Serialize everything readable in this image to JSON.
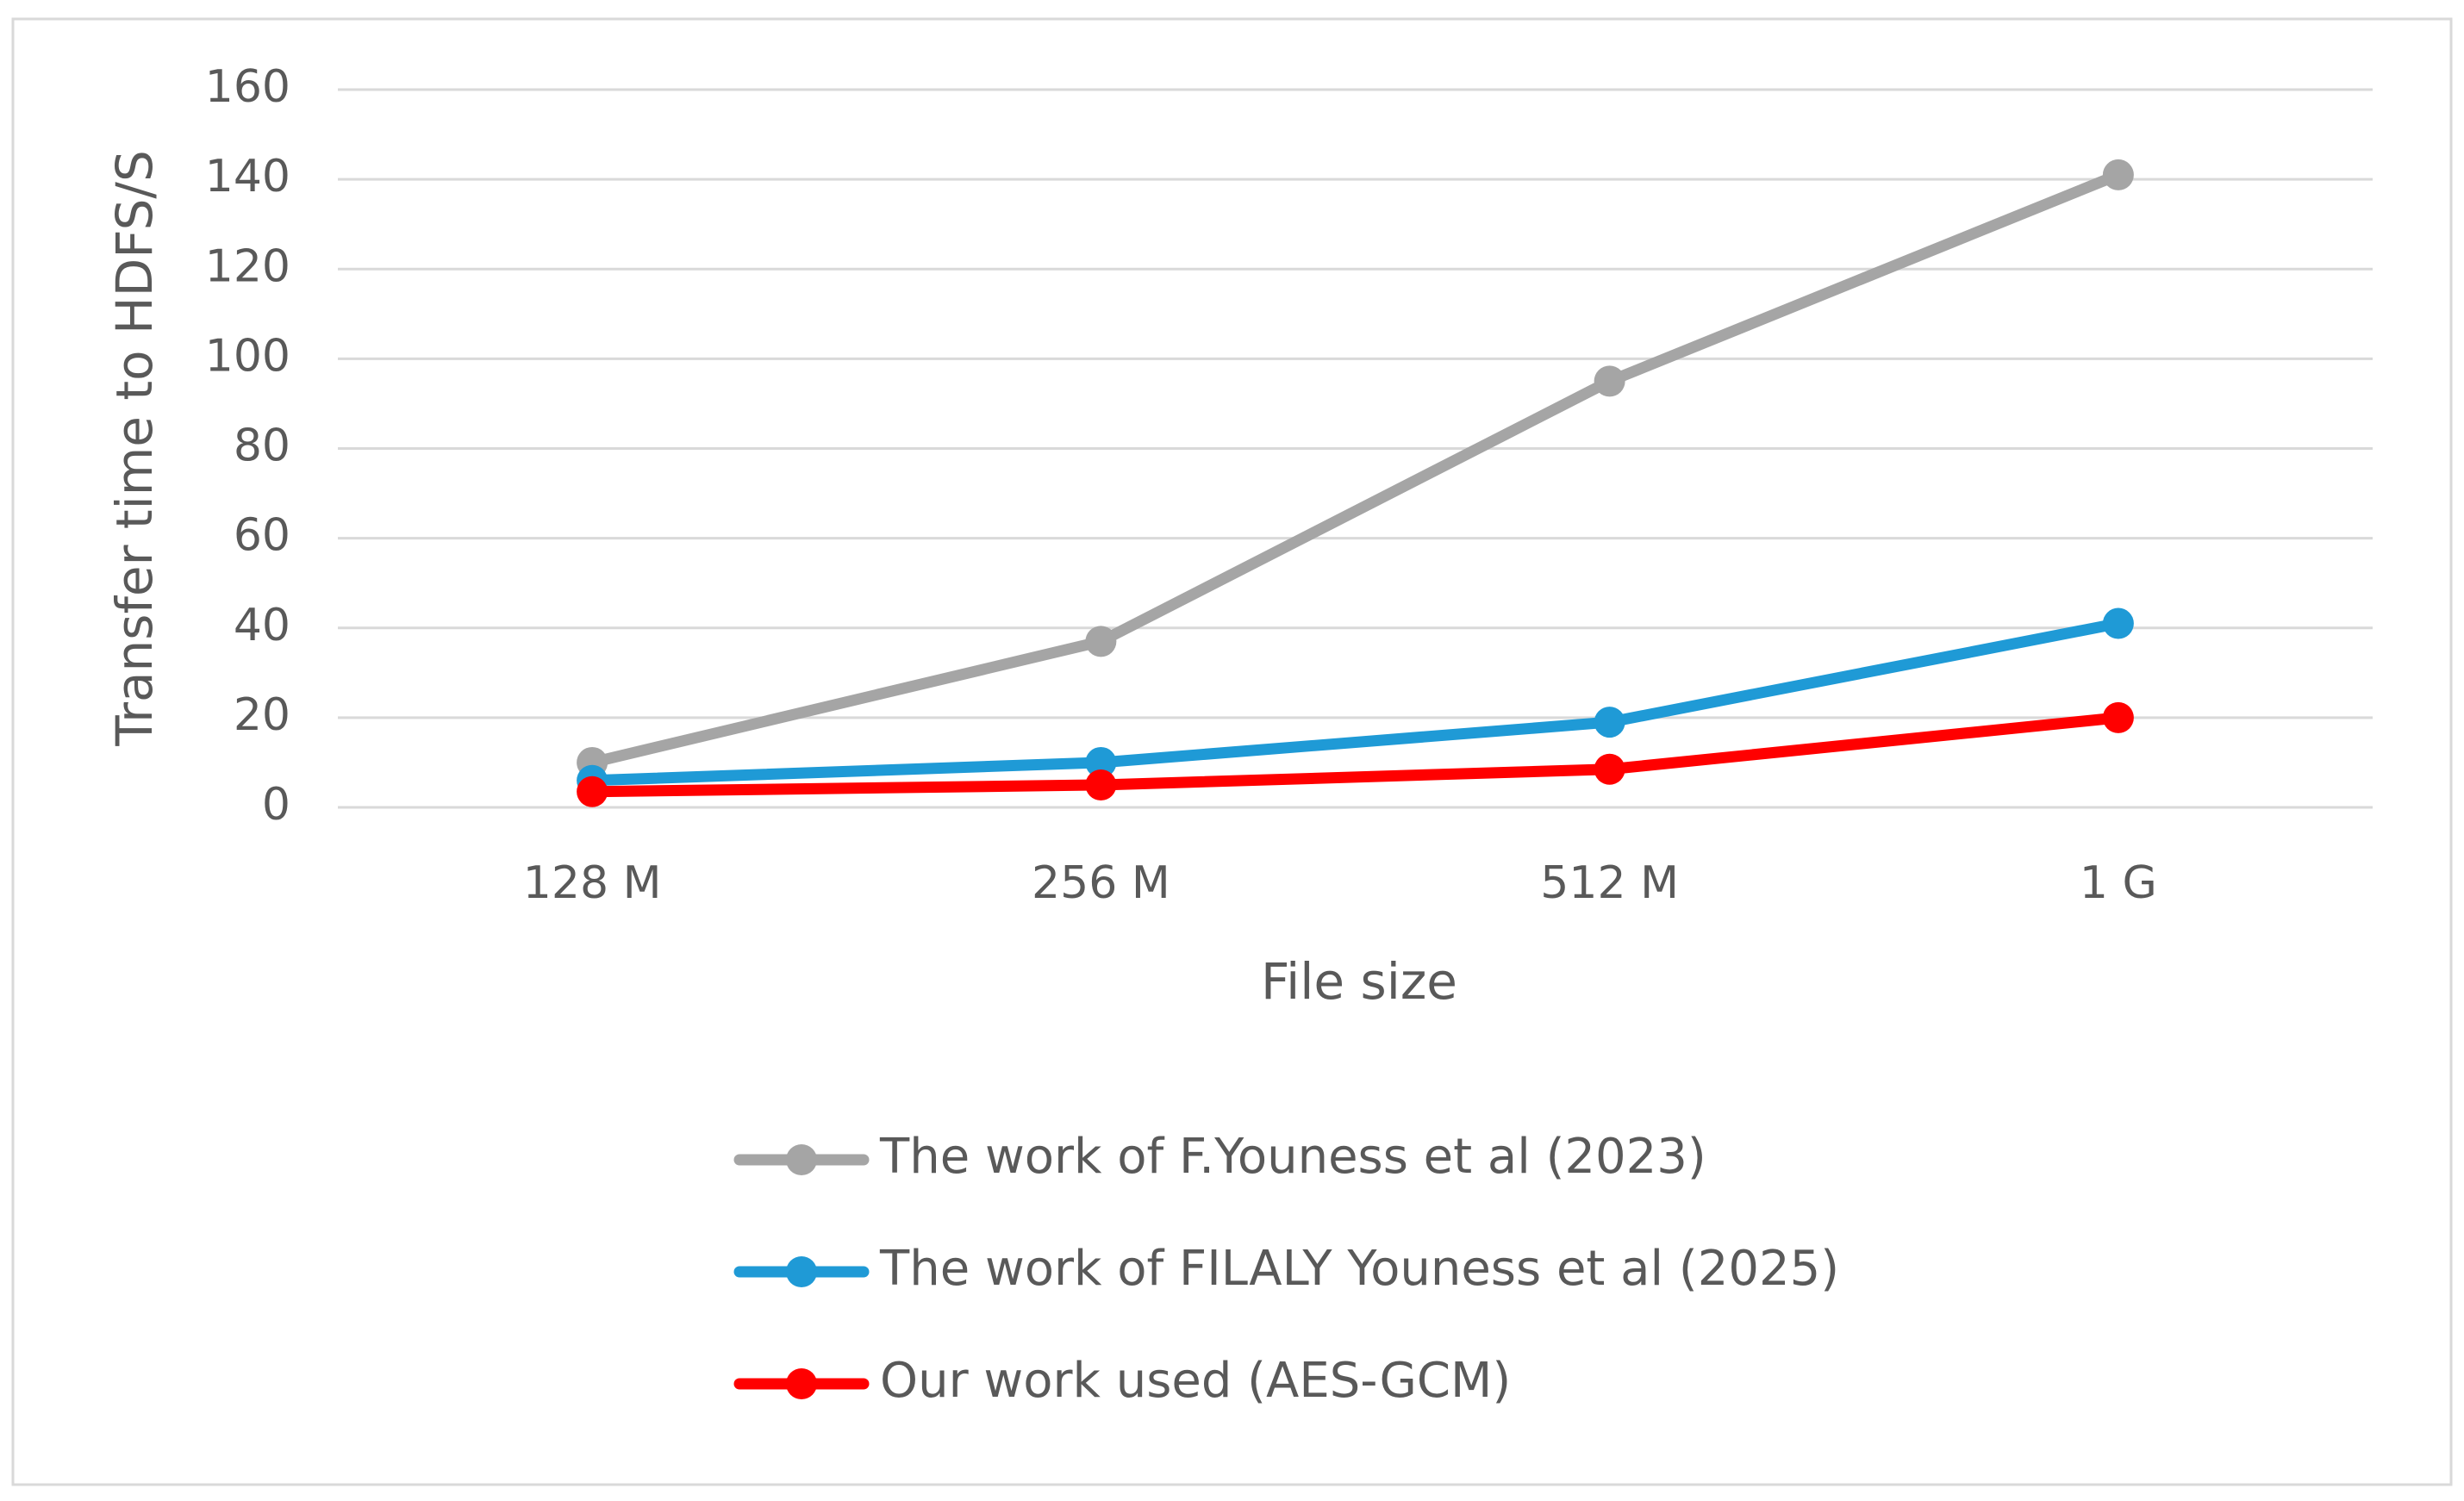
{
  "chart_data": {
    "type": "line",
    "x_label": "File size",
    "y_label": "Transfer time to HDFS/S",
    "categories": [
      "128 M",
      "256 M",
      "512 M",
      "1 G"
    ],
    "series": [
      {
        "name": "The work of F.Youness et al (2023)",
        "color": "#a5a5a5",
        "values": [
          10,
          37,
          95,
          141
        ]
      },
      {
        "name": "The work of FILALY Youness et al (2025)",
        "color": "#1f9ad6",
        "values": [
          6,
          10,
          19,
          41
        ]
      },
      {
        "name": "Our work used (AES-GCM)",
        "color": "#ff0000",
        "values": [
          3.5,
          5,
          8.5,
          20
        ]
      }
    ],
    "ylim": [
      0,
      160
    ],
    "yticks": [
      0,
      20,
      40,
      60,
      80,
      100,
      120,
      140,
      160
    ],
    "grid": true,
    "legend": "bottom"
  }
}
